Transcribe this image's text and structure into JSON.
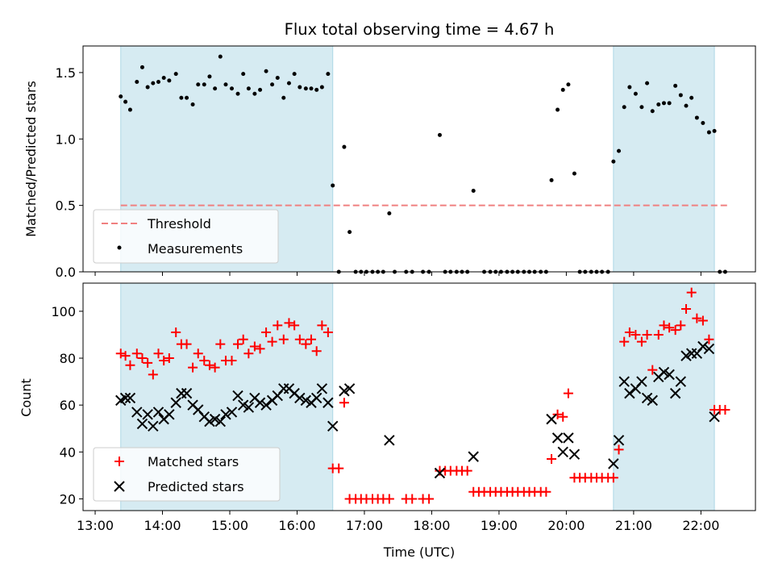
{
  "title": "Flux total observing time = 4.67 h",
  "xlabel": "Time (UTC)",
  "colors": {
    "shade": "#add8e6",
    "threshold": "#f08080",
    "matched": "#ff0000",
    "predicted": "#000000",
    "measurement": "#000000"
  },
  "x_ticks": [
    {
      "hour": 13,
      "label": "13:00"
    },
    {
      "hour": 14,
      "label": "14:00"
    },
    {
      "hour": 15,
      "label": "15:00"
    },
    {
      "hour": 16,
      "label": "16:00"
    },
    {
      "hour": 17,
      "label": "17:00"
    },
    {
      "hour": 18,
      "label": "18:00"
    },
    {
      "hour": 19,
      "label": "19:00"
    },
    {
      "hour": 20,
      "label": "20:00"
    },
    {
      "hour": 21,
      "label": "21:00"
    },
    {
      "hour": 22,
      "label": "22:00"
    }
  ],
  "chart_data": [
    {
      "type": "scatter",
      "ylabel": "Matched/Predicted stars",
      "xlim": [
        12.82,
        22.81
      ],
      "ylim": [
        0,
        1.7
      ],
      "y_ticks": [
        {
          "value": 0,
          "label": "0.0"
        },
        {
          "value": 0.5,
          "label": "0.5"
        },
        {
          "value": 1.0,
          "label": "1.0"
        },
        {
          "value": 1.5,
          "label": "1.5"
        }
      ],
      "shaded_intervals": [
        [
          13.38,
          16.53
        ],
        [
          20.7,
          22.2
        ]
      ],
      "threshold": {
        "name": "Threshold",
        "value": 0.5,
        "x_range": [
          13.38,
          22.4
        ]
      },
      "legend": {
        "placement": "lower-left",
        "entries": [
          "Threshold",
          "Measurements"
        ]
      },
      "series": [
        {
          "name": "Measurements",
          "x": [
            13.38,
            13.45,
            13.52,
            13.62,
            13.7,
            13.78,
            13.86,
            13.94,
            14.02,
            14.1,
            14.2,
            14.28,
            14.36,
            14.45,
            14.53,
            14.62,
            14.7,
            14.78,
            14.86,
            14.94,
            15.03,
            15.12,
            15.2,
            15.28,
            15.37,
            15.45,
            15.54,
            15.63,
            15.71,
            15.8,
            15.88,
            15.96,
            16.04,
            16.13,
            16.21,
            16.29,
            16.37,
            16.46,
            16.53,
            16.62,
            16.7,
            16.78,
            16.87,
            16.95,
            17.03,
            17.12,
            17.2,
            17.28,
            17.37,
            17.45,
            17.62,
            17.71,
            17.87,
            17.96,
            18.12,
            18.2,
            18.28,
            18.37,
            18.45,
            18.53,
            18.62,
            18.78,
            18.87,
            18.95,
            19.03,
            19.12,
            19.2,
            19.28,
            19.37,
            19.45,
            19.53,
            19.62,
            19.7,
            19.78,
            19.87,
            19.95,
            20.03,
            20.12,
            20.2,
            20.28,
            20.37,
            20.45,
            20.53,
            20.62,
            20.7,
            20.78,
            20.86,
            20.94,
            21.03,
            21.12,
            21.2,
            21.28,
            21.37,
            21.45,
            21.53,
            21.62,
            21.7,
            21.78,
            21.86,
            21.94,
            22.03,
            22.12,
            22.2,
            22.28,
            22.36
          ],
          "y": [
            1.32,
            1.28,
            1.22,
            1.43,
            1.54,
            1.39,
            1.42,
            1.43,
            1.46,
            1.44,
            1.49,
            1.31,
            1.31,
            1.26,
            1.41,
            1.41,
            1.47,
            1.38,
            1.62,
            1.41,
            1.38,
            1.34,
            1.49,
            1.38,
            1.34,
            1.37,
            1.51,
            1.41,
            1.46,
            1.31,
            1.42,
            1.49,
            1.39,
            1.38,
            1.38,
            1.37,
            1.39,
            1.49,
            0.65,
            0.0,
            0.94,
            0.3,
            0.0,
            0.0,
            0.0,
            0.0,
            0.0,
            0.0,
            0.44,
            0.0,
            0.0,
            0.0,
            0.0,
            0.0,
            1.03,
            0.0,
            0.0,
            0.0,
            0.0,
            0.0,
            0.61,
            0.0,
            0.0,
            0.0,
            0.0,
            0.0,
            0.0,
            0.0,
            0.0,
            0.0,
            0.0,
            0.0,
            0.0,
            0.69,
            1.22,
            1.37,
            1.41,
            0.74,
            0.0,
            0.0,
            0.0,
            0.0,
            0.0,
            0.0,
            0.83,
            0.91,
            1.24,
            1.39,
            1.34,
            1.24,
            1.42,
            1.21,
            1.26,
            1.27,
            1.27,
            1.4,
            1.33,
            1.25,
            1.31,
            1.16,
            1.12,
            1.05,
            1.06,
            0.0,
            0.0
          ]
        }
      ]
    },
    {
      "type": "scatter",
      "ylabel": "Count",
      "xlim": [
        12.82,
        22.81
      ],
      "ylim": [
        15,
        112
      ],
      "y_ticks": [
        {
          "value": 20,
          "label": "20"
        },
        {
          "value": 40,
          "label": "40"
        },
        {
          "value": 60,
          "label": "60"
        },
        {
          "value": 80,
          "label": "80"
        },
        {
          "value": 100,
          "label": "100"
        }
      ],
      "shaded_intervals": [
        [
          13.38,
          16.53
        ],
        [
          20.7,
          22.2
        ]
      ],
      "legend": {
        "placement": "lower-left",
        "entries": [
          "Matched stars",
          "Predicted stars"
        ]
      },
      "series": [
        {
          "name": "Matched stars",
          "marker": "plus",
          "x": [
            13.38,
            13.45,
            13.52,
            13.62,
            13.7,
            13.78,
            13.86,
            13.94,
            14.02,
            14.1,
            14.2,
            14.28,
            14.36,
            14.45,
            14.53,
            14.62,
            14.7,
            14.78,
            14.86,
            14.94,
            15.03,
            15.12,
            15.2,
            15.28,
            15.37,
            15.45,
            15.54,
            15.63,
            15.71,
            15.8,
            15.88,
            15.96,
            16.04,
            16.13,
            16.21,
            16.29,
            16.37,
            16.46,
            16.53,
            16.62,
            16.7,
            16.78,
            16.87,
            16.95,
            17.03,
            17.12,
            17.2,
            17.28,
            17.37,
            17.62,
            17.71,
            17.87,
            17.96,
            18.12,
            18.2,
            18.28,
            18.37,
            18.45,
            18.53,
            18.62,
            18.7,
            18.78,
            18.87,
            18.95,
            19.03,
            19.12,
            19.2,
            19.28,
            19.37,
            19.45,
            19.53,
            19.62,
            19.7,
            19.78,
            19.87,
            19.95,
            20.03,
            20.12,
            20.2,
            20.28,
            20.37,
            20.45,
            20.53,
            20.62,
            20.7,
            20.78,
            20.86,
            20.94,
            21.03,
            21.12,
            21.2,
            21.28,
            21.37,
            21.45,
            21.53,
            21.62,
            21.7,
            21.78,
            21.86,
            21.94,
            22.03,
            22.12,
            22.2,
            22.28,
            22.36
          ],
          "y": [
            82,
            81,
            77,
            82,
            80,
            78,
            73,
            82,
            79,
            80,
            91,
            86,
            86,
            76,
            82,
            79,
            77,
            76,
            86,
            79,
            79,
            86,
            88,
            82,
            85,
            84,
            91,
            87,
            94,
            88,
            95,
            94,
            88,
            86,
            88,
            83,
            94,
            91,
            33,
            33,
            61,
            20,
            20,
            20,
            20,
            20,
            20,
            20,
            20,
            20,
            20,
            20,
            20,
            32,
            32,
            32,
            32,
            32,
            32,
            23,
            23,
            23,
            23,
            23,
            23,
            23,
            23,
            23,
            23,
            23,
            23,
            23,
            23,
            37,
            56,
            55,
            65,
            29,
            29,
            29,
            29,
            29,
            29,
            29,
            29,
            41,
            87,
            91,
            90,
            87,
            90,
            75,
            90,
            94,
            93,
            92,
            94,
            101,
            108,
            97,
            96,
            88,
            58,
            58,
            58
          ]
        },
        {
          "name": "Predicted stars",
          "marker": "x",
          "x": [
            13.38,
            13.45,
            13.52,
            13.62,
            13.7,
            13.78,
            13.86,
            13.94,
            14.02,
            14.1,
            14.2,
            14.28,
            14.36,
            14.45,
            14.53,
            14.62,
            14.7,
            14.78,
            14.86,
            14.94,
            15.03,
            15.12,
            15.2,
            15.28,
            15.37,
            15.45,
            15.54,
            15.63,
            15.71,
            15.8,
            15.88,
            15.96,
            16.04,
            16.13,
            16.21,
            16.29,
            16.37,
            16.46,
            16.53,
            16.7,
            16.78,
            17.37,
            18.12,
            18.62,
            19.78,
            19.87,
            19.95,
            20.03,
            20.12,
            20.7,
            20.78,
            20.86,
            20.94,
            21.03,
            21.12,
            21.2,
            21.28,
            21.37,
            21.45,
            21.53,
            21.62,
            21.7,
            21.78,
            21.86,
            21.94,
            22.03,
            22.12,
            22.2
          ],
          "y": [
            62,
            63,
            63,
            57,
            52,
            56,
            51,
            57,
            54,
            56,
            61,
            65,
            65,
            60,
            58,
            55,
            53,
            54,
            53,
            56,
            57,
            64,
            60,
            59,
            63,
            61,
            60,
            62,
            64,
            67,
            67,
            65,
            63,
            62,
            61,
            63,
            67,
            61,
            51,
            66,
            67,
            45,
            31,
            38,
            54,
            46,
            40,
            46,
            39,
            35,
            45,
            70,
            65,
            67,
            70,
            63,
            62,
            72,
            74,
            73,
            65,
            70,
            81,
            82,
            82,
            85,
            84,
            55
          ]
        }
      ]
    }
  ]
}
